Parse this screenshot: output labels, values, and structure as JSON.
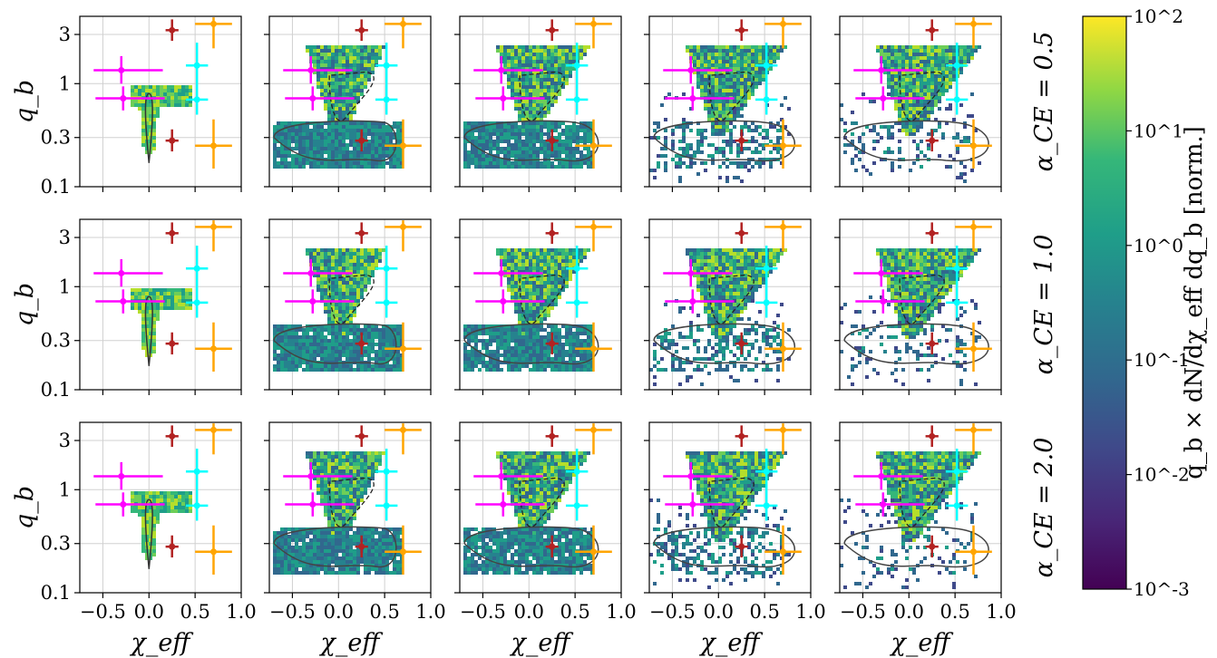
{
  "chart_data": {
    "type": "heatmap",
    "scale_note": "log-scaled color, 2D histograms of (chi_eff, q_b) with observed-event error crosses overlaid",
    "grid": {
      "rows": 3,
      "cols": 5
    },
    "row_labels": [
      "α_CE = 0.5",
      "α_CE = 1.0",
      "α_CE = 2.0"
    ],
    "xlabel": "χ_eff",
    "ylabel": "q_b",
    "xlim": [
      -0.75,
      1.0
    ],
    "ylim": [
      0.1,
      4.5
    ],
    "yscale": "log",
    "x_ticks": [
      "−0.5",
      "0.0",
      "0.5",
      "1.0"
    ],
    "x_tick_values": [
      -0.5,
      0.0,
      0.5,
      1.0
    ],
    "y_ticks": [
      "0.1",
      "0.3",
      "1",
      "3"
    ],
    "y_tick_values": [
      0.1,
      0.3,
      1,
      3
    ],
    "grid_lines": true,
    "colorbar": {
      "label": "q_b × dN/dχ_eff dq_b [norm.]",
      "scale": "log",
      "range": [
        0.001,
        100
      ],
      "tick_labels": [
        "10^2",
        "10^1",
        "10^0",
        "10^-1",
        "10^-2",
        "10^-3"
      ],
      "tick_values": [
        100,
        10,
        1,
        0.1,
        0.01,
        0.001
      ],
      "colormap": "viridis"
    },
    "error_points": [
      {
        "color": "#ff00ff",
        "x": -0.3,
        "xerr": [
          0.3,
          0.45
        ],
        "y": 1.35,
        "yerr": [
          0.35,
          0.5
        ]
      },
      {
        "color": "#ff00ff",
        "x": -0.28,
        "xerr": [
          0.3,
          0.45
        ],
        "y": 0.72,
        "yerr": [
          0.17,
          0.22
        ]
      },
      {
        "color": "#b22222",
        "x": 0.25,
        "xerr": [
          0.07,
          0.07
        ],
        "y": 3.3,
        "yerr": [
          0.7,
          0.9
        ]
      },
      {
        "color": "#b22222",
        "x": 0.25,
        "xerr": [
          0.07,
          0.07
        ],
        "y": 0.28,
        "yerr": [
          0.06,
          0.08
        ]
      },
      {
        "color": "#ffa500",
        "x": 0.7,
        "xerr": [
          0.2,
          0.2
        ],
        "y": 3.8,
        "yerr": [
          1.6,
          0.6
        ]
      },
      {
        "color": "#ffa500",
        "x": 0.7,
        "xerr": [
          0.2,
          0.2
        ],
        "y": 0.25,
        "yerr": [
          0.1,
          0.2
        ]
      },
      {
        "color": "#00ffff",
        "x": 0.52,
        "xerr": [
          0.12,
          0.12
        ],
        "y": 1.5,
        "yerr": [
          0.5,
          1.0
        ]
      },
      {
        "color": "#00ffff",
        "x": 0.52,
        "xerr": [
          0.12,
          0.12
        ],
        "y": 0.7,
        "yerr": [
          0.2,
          0.3
        ]
      }
    ],
    "panel_progression": "left to right: upper triangular cloud (chi_eff 0..0.7, q_b 0.3..2) grows; lower cloud (q_b 0.15..0.4) appears from column 2 and fades to scattered pixels by column 5"
  }
}
